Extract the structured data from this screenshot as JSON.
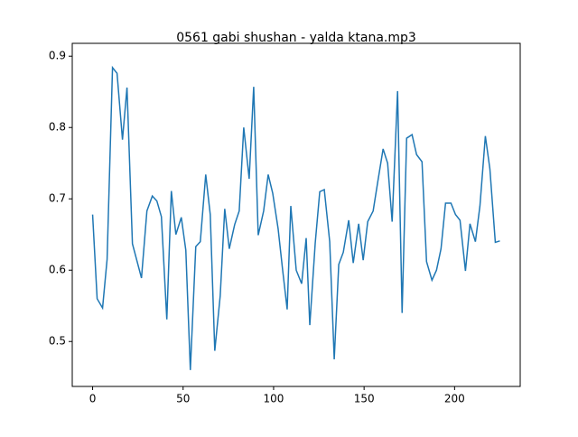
{
  "chart_data": {
    "type": "line",
    "title": "0561 gabi shushan - yalda ktana.mp3",
    "series": [
      {
        "color": "#1f77b4",
        "x": [
          0,
          2.5,
          5.5,
          8,
          11,
          13.5,
          16.5,
          19,
          22,
          24.5,
          27,
          30,
          33,
          35.5,
          38,
          41,
          43.5,
          46,
          49,
          51.5,
          54,
          57,
          59.5,
          62.5,
          65,
          67.5,
          70.5,
          73,
          75.5,
          78.5,
          81,
          83.5,
          86.5,
          89,
          91.5,
          94.5,
          97,
          99.5,
          102.5,
          105,
          107.5,
          109.5,
          112.5,
          115.5,
          118,
          120,
          123,
          125.5,
          128,
          131,
          133.5,
          136,
          138.5,
          141.5,
          144,
          147,
          149.5,
          152,
          155,
          157.5,
          160.5,
          163,
          165.5,
          168.5,
          171,
          173.5,
          176.5,
          179,
          182,
          184.5,
          187.5,
          190,
          192.5,
          195,
          198,
          200.5,
          203,
          206,
          208.5,
          211.5,
          214,
          217,
          219.5,
          222.5,
          225
        ],
        "values": [
          0.678,
          0.56,
          0.547,
          0.615,
          0.884,
          0.876,
          0.783,
          0.856,
          0.637,
          0.613,
          0.589,
          0.683,
          0.704,
          0.697,
          0.675,
          0.531,
          0.711,
          0.65,
          0.674,
          0.628,
          0.46,
          0.633,
          0.64,
          0.734,
          0.678,
          0.487,
          0.564,
          0.686,
          0.63,
          0.664,
          0.683,
          0.8,
          0.728,
          0.857,
          0.649,
          0.683,
          0.734,
          0.708,
          0.658,
          0.6,
          0.545,
          0.69,
          0.6,
          0.581,
          0.645,
          0.523,
          0.638,
          0.71,
          0.713,
          0.64,
          0.475,
          0.608,
          0.625,
          0.67,
          0.61,
          0.665,
          0.614,
          0.668,
          0.683,
          0.723,
          0.77,
          0.75,
          0.668,
          0.851,
          0.54,
          0.785,
          0.79,
          0.762,
          0.752,
          0.612,
          0.586,
          0.6,
          0.63,
          0.694,
          0.694,
          0.678,
          0.67,
          0.599,
          0.665,
          0.64,
          0.69,
          0.788,
          0.742,
          0.639,
          0.641
        ]
      }
    ],
    "xlim": [
      -11.25,
      236.25
    ],
    "xticks": [
      0,
      50,
      100,
      150,
      200
    ],
    "ylim": [
      0.437,
      0.918
    ],
    "yticks": [
      0.5,
      0.6,
      0.7,
      0.8,
      0.9
    ]
  }
}
